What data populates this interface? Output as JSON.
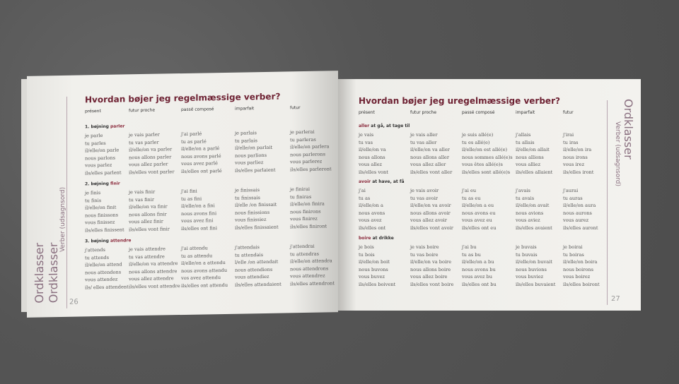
{
  "left": {
    "title": "Hvordan bøjer jeg regelmæssige verber?",
    "columns": [
      "présent",
      "futur proche",
      "passé composé",
      "imparfait",
      "futur"
    ],
    "sections": [
      {
        "label": "1. bøjning ",
        "verb": "parler",
        "rows": [
          [
            "je parle",
            "je vais parler",
            "j'ai parlé",
            "je parlais",
            "je parlerai"
          ],
          [
            "tu parles",
            "tu vas parler",
            "tu as parlé",
            "tu parlais",
            "tu parleras"
          ],
          [
            "il/elle/on parle",
            "il/elle/on va parler",
            "il/elle/on a parlé",
            "il/elle/on parlait",
            "il/elle/on parlera"
          ],
          [
            "nous parlons",
            "nous allons parler",
            "nous avons parlé",
            "nous parlions",
            "nous parlerons"
          ],
          [
            "vous parlez",
            "vous allez parler",
            "vous avez parlé",
            "vous parliez",
            "vous parlerez"
          ],
          [
            "ils/elles parlent",
            "ils/elles vont parler",
            "ils/elles ont parlé",
            "ils/elles parlaient",
            "ils/elles parleront"
          ]
        ]
      },
      {
        "label": "2. bøjning ",
        "verb": "finir",
        "rows": [
          [
            "je finis",
            "je vais finir",
            "j'ai fini",
            "je finissais",
            "je finirai"
          ],
          [
            "tu finis",
            "tu vas finir",
            "tu as fini",
            "tu finissais",
            "tu finiras"
          ],
          [
            "il/elle/on finit",
            "il/elle/on va finir",
            "il/elle/on a fini",
            "il/elle /on finissait",
            "il/elle/on finira"
          ],
          [
            "nous finissons",
            "nous allons finir",
            "nous avons fini",
            "nous finissions",
            "nous finirons"
          ],
          [
            "vous finissez",
            "vous allez finir",
            "vous avez fini",
            "vous finissiez",
            "vous finirez"
          ],
          [
            "ils/elles finissent",
            "ils/elles vont finir",
            "ils/elles ont fini",
            "ils/elles finissaient",
            "ils/elles finiront"
          ]
        ]
      },
      {
        "label": "3. bøjning ",
        "verb": "attendre",
        "rows": [
          [
            "j'attends",
            "je vais attendre",
            "j'ai attendu",
            "j'attendais",
            "j'attendrai"
          ],
          [
            "tu attends",
            "tu vas attendre",
            "tu as attendu",
            "tu attendais",
            "tu attendras"
          ],
          [
            "il/elle/on attend",
            "il/elle/on va attendre",
            "il/elle/on a attendu",
            "l/elle /on attendait",
            "il/elle/on attendra"
          ],
          [
            "nous attendons",
            "nous allons attendre",
            "nous avons attendu",
            "nous attendions",
            "nous attendrons"
          ],
          [
            "vous attendez",
            "vous allez attendre",
            "vos avez attendu",
            "vous attendiez",
            "vous attendrez"
          ],
          [
            "ils/ elles attendent",
            "ils/elles vont attendre",
            "ils/elles ont attendu",
            "ils/elles attendaient",
            "ils/elles attendront"
          ]
        ]
      }
    ],
    "side_title": "Ordklasser",
    "side_subtitle": "Verber (udsagnsord)",
    "page_number": "26"
  },
  "right": {
    "title": "Hvordan bøjer jeg uregelmæssige verber?",
    "columns": [
      "présent",
      "futur proche",
      "passé composé",
      "imparfait",
      "futur"
    ],
    "sections": [
      {
        "label": "",
        "verb": "aller",
        "suffix": " at gå, at tage til",
        "rows": [
          [
            "je vais",
            "je vais aller",
            "je suis allé(e)",
            "j'allais",
            "j'irai"
          ],
          [
            "tu vas",
            "tu vas aller",
            "tu es allé(e)",
            "tu allais",
            "tu iras"
          ],
          [
            "il/elle/on va",
            "il/elle/on va aller",
            "il/elle/on est allé(e)",
            "il/elle/on allait",
            "il/elle/on ira"
          ],
          [
            "nous allons",
            "nous allons aller",
            "nous sommes allé(e)s",
            "nous allions",
            "nous irons"
          ],
          [
            "vous allez",
            "vous allez aller",
            "vous êtes allé(e)s",
            "vous alliez",
            "vous irez"
          ],
          [
            "ils/elles vont",
            "ils/elles vont aller",
            "ils/elles sont allé(e)s",
            "ils/elles allaient",
            "ils/elles iront"
          ]
        ]
      },
      {
        "label": "",
        "verb": "avoir",
        "suffix": " at have, at få",
        "rows": [
          [
            "j'ai",
            "je vais avoir",
            "j'ai eu",
            "j'avais",
            "j'aurai"
          ],
          [
            "tu as",
            "tu vas avoir",
            "tu as eu",
            "tu avais",
            "tu auras"
          ],
          [
            "il/elle/on a",
            "il/elle/on va avoir",
            "il/elle/on a eu",
            "il/elle/on avait",
            "il/elle/on aura"
          ],
          [
            "nous avons",
            "nous allons avoir",
            "nous avons eu",
            "nous avions",
            "nous aurons"
          ],
          [
            "vous avez",
            "vous allez avoir",
            "vous avez eu",
            "vous aviez",
            "vous aurez"
          ],
          [
            "ils/elles ont",
            "ils/elles vont avoir",
            "ils/elles ont eu",
            "ils/elles avaient",
            "ils/elles auront"
          ]
        ]
      },
      {
        "label": "",
        "verb": "boire",
        "suffix": " at drikke",
        "rows": [
          [
            "je bois",
            "je vais boire",
            "j'ai bu",
            "je buvais",
            "je boirai"
          ],
          [
            "tu bois",
            "tu vas boire",
            "tu as bu",
            "tu buvais",
            "tu boiras"
          ],
          [
            "il/elle/on boit",
            "il/elle/on va boire",
            "il/elle/on a bu",
            "il/elle/on buvait",
            "il/elle/on boira"
          ],
          [
            "nous buvons",
            "nous allons boire",
            "nous avons bu",
            "nous buvions",
            "nous boirons"
          ],
          [
            "vous buvez",
            "vous allez boire",
            "vous avez bu",
            "vous buviez",
            "vous boirez"
          ],
          [
            "ils/elles boivent",
            "ils/elles vont boire",
            "ils/elles ont bu",
            "ils/elles buvaient",
            "ils/elles boiront"
          ]
        ]
      }
    ],
    "side_title": "Ordklasser",
    "side_subtitle": "Verber (udsagnsord)",
    "page_number": "27"
  },
  "colors": {
    "heading": "#6e2233",
    "verb_accent": "#8a2a3c",
    "paper": "#f1f0ec",
    "background": "#5a5a5a"
  }
}
